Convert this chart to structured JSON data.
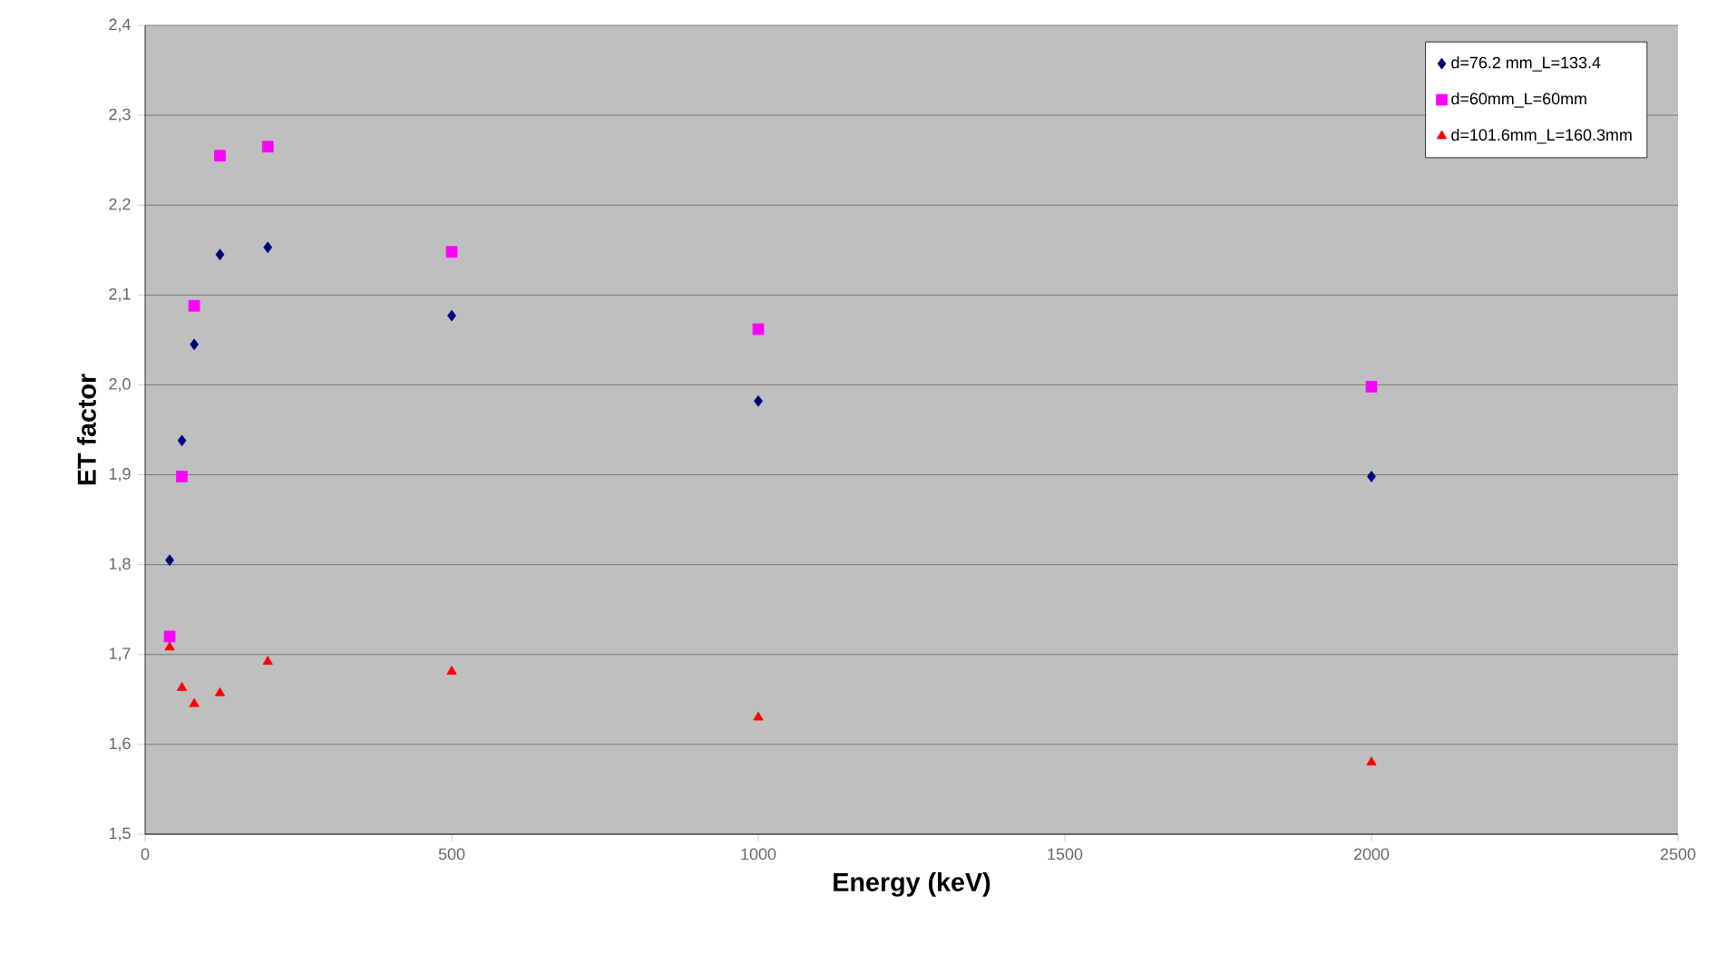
{
  "chart_data": {
    "type": "scatter",
    "xlabel": "Energy (keV)",
    "ylabel": "ET factor",
    "x": [
      40,
      60,
      80,
      122,
      200,
      500,
      1000,
      2000
    ],
    "series": [
      {
        "name": "d=76.2 mm_L=133.4",
        "color": "#000080",
        "marker": "diamond",
        "values": [
          1.805,
          1.938,
          2.045,
          2.145,
          2.153,
          2.077,
          1.982,
          1.898
        ]
      },
      {
        "name": "d=60mm_L=60mm",
        "color": "#ff00ff",
        "marker": "square",
        "values": [
          1.72,
          1.898,
          2.088,
          2.255,
          2.265,
          2.148,
          2.062,
          1.998
        ]
      },
      {
        "name": "d=101.6mm_L=160.3mm",
        "color": "#ff0000",
        "marker": "triangle",
        "values": [
          1.708,
          1.663,
          1.645,
          1.657,
          1.692,
          1.681,
          1.63,
          1.58
        ]
      }
    ],
    "xlim": [
      0,
      2500
    ],
    "xticks": [
      0,
      500,
      1000,
      1500,
      2000,
      2500
    ],
    "ylim": [
      1.5,
      2.4
    ],
    "yticks": [
      {
        "value": 1.5,
        "label": "1,5"
      },
      {
        "value": 1.6,
        "label": "1,6"
      },
      {
        "value": 1.7,
        "label": "1,7"
      },
      {
        "value": 1.8,
        "label": "1,8"
      },
      {
        "value": 1.9,
        "label": "1,9"
      },
      {
        "value": 2.0,
        "label": "2,0"
      },
      {
        "value": 2.1,
        "label": "2,1"
      },
      {
        "value": 2.2,
        "label": "2,2"
      },
      {
        "value": 2.3,
        "label": "2,3"
      },
      {
        "value": 2.4,
        "label": "2,4"
      }
    ],
    "grid": "y",
    "legend": "top right"
  }
}
